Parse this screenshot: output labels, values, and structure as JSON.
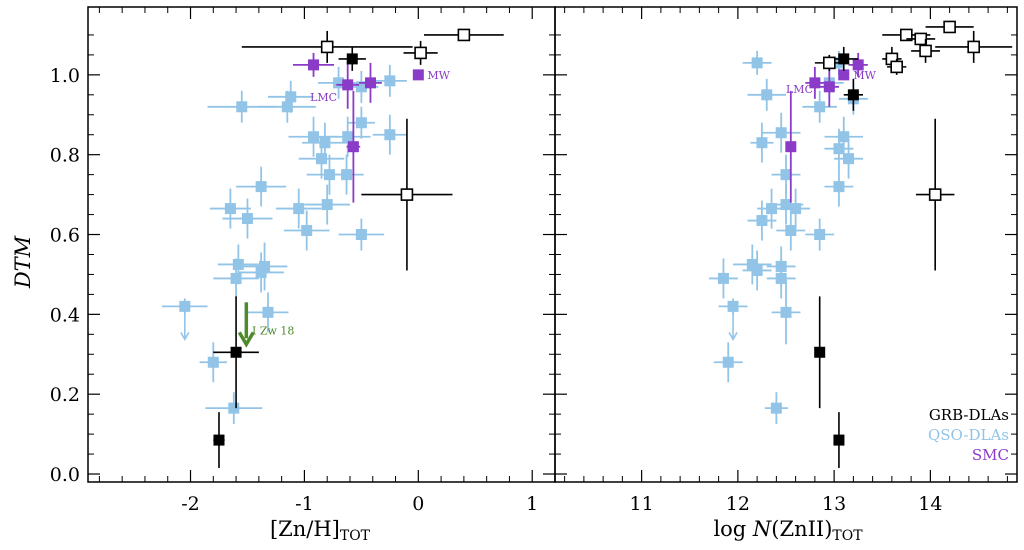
{
  "chart_data": [
    {
      "type": "scatter",
      "panel": "left",
      "title": "",
      "xlabel": "[Zn/H]",
      "xlabel_sub": "TOT",
      "ylabel": "DTM",
      "xlim": [
        -2.9,
        1.2
      ],
      "ylim": [
        -0.02,
        1.17
      ],
      "xticks": [
        -2,
        -1,
        0,
        1
      ],
      "xtick_labels": [
        "-2",
        "-1",
        "0",
        "1"
      ],
      "yticks": [
        0.0,
        0.2,
        0.4,
        0.6,
        0.8,
        1.0
      ],
      "ytick_labels": [
        "0.0",
        "0.2",
        "0.4",
        "0.6",
        "0.8",
        "1.0"
      ],
      "grid": false,
      "series": [
        {
          "name": "QSO-DLAs",
          "color": "#92c4e8",
          "marker": "filled-square",
          "points": [
            {
              "x": -2.05,
              "y": 0.42,
              "xerr": 0.2,
              "yerr": 0.02,
              "upper_limit": true
            },
            {
              "x": -1.8,
              "y": 0.28,
              "xerr": 0.12,
              "yerr": 0.05
            },
            {
              "x": -1.62,
              "y": 0.165,
              "xerr": 0.25,
              "yerr": 0.04
            },
            {
              "x": -1.65,
              "y": 0.665,
              "xerr": 0.18,
              "yerr": 0.05
            },
            {
              "x": -1.38,
              "y": 0.72,
              "xerr": 0.22,
              "yerr": 0.05
            },
            {
              "x": -1.5,
              "y": 0.64,
              "xerr": 0.22,
              "yerr": 0.05
            },
            {
              "x": -1.58,
              "y": 0.525,
              "xerr": 0.18,
              "yerr": 0.05
            },
            {
              "x": -1.6,
              "y": 0.49,
              "xerr": 0.2,
              "yerr": 0.05
            },
            {
              "x": -1.35,
              "y": 0.52,
              "xerr": 0.2,
              "yerr": 0.06
            },
            {
              "x": -1.38,
              "y": 0.505,
              "xerr": 0.2,
              "yerr": 0.05
            },
            {
              "x": -1.32,
              "y": 0.405,
              "xerr": 0.18,
              "yerr": 0.05
            },
            {
              "x": -1.55,
              "y": 0.92,
              "xerr": 0.3,
              "yerr": 0.04
            },
            {
              "x": -1.12,
              "y": 0.945,
              "xerr": 0.2,
              "yerr": 0.04
            },
            {
              "x": -1.15,
              "y": 0.92,
              "xerr": 0.25,
              "yerr": 0.04
            },
            {
              "x": -1.05,
              "y": 0.665,
              "xerr": 0.2,
              "yerr": 0.05
            },
            {
              "x": -0.98,
              "y": 0.61,
              "xerr": 0.2,
              "yerr": 0.05
            },
            {
              "x": -0.92,
              "y": 0.845,
              "xerr": 0.22,
              "yerr": 0.05
            },
            {
              "x": -0.82,
              "y": 0.83,
              "xerr": 0.2,
              "yerr": 0.05
            },
            {
              "x": -0.85,
              "y": 0.79,
              "xerr": 0.2,
              "yerr": 0.05
            },
            {
              "x": -0.78,
              "y": 0.75,
              "xerr": 0.2,
              "yerr": 0.05
            },
            {
              "x": -0.8,
              "y": 0.675,
              "xerr": 0.2,
              "yerr": 0.05
            },
            {
              "x": -0.7,
              "y": 0.98,
              "xerr": 0.18,
              "yerr": 0.04
            },
            {
              "x": -0.62,
              "y": 0.845,
              "xerr": 0.2,
              "yerr": 0.05
            },
            {
              "x": -0.63,
              "y": 0.75,
              "xerr": 0.15,
              "yerr": 0.05
            },
            {
              "x": -0.5,
              "y": 0.97,
              "xerr": 0.15,
              "yerr": 0.04
            },
            {
              "x": -0.25,
              "y": 0.85,
              "xerr": 0.15,
              "yerr": 0.05
            },
            {
              "x": -0.25,
              "y": 0.985,
              "xerr": 0.15,
              "yerr": 0.04
            },
            {
              "x": -0.5,
              "y": 0.88,
              "xerr": 0.12,
              "yerr": 0.04
            },
            {
              "x": -0.5,
              "y": 0.6,
              "xerr": 0.2,
              "yerr": 0.04
            }
          ]
        },
        {
          "name": "SMC",
          "color": "#8a3bc7",
          "marker": "filled-square",
          "points": [
            {
              "x": -0.92,
              "y": 1.025,
              "xerr": 0.18,
              "yerr": 0.03
            },
            {
              "x": -0.62,
              "y": 0.975,
              "xerr": 0.1,
              "yerr": 0.06
            },
            {
              "x": -0.42,
              "y": 0.98,
              "xerr": 0.1,
              "yerr": 0.05
            },
            {
              "x": -0.57,
              "y": 0.82,
              "xerr": 0.06,
              "yerr": 0.14
            }
          ]
        },
        {
          "name": "MW",
          "color": "#8a3bc7",
          "marker": "filled-square",
          "points": [
            {
              "x": 0.0,
              "y": 1.0,
              "xerr": 0,
              "yerr": 0
            }
          ]
        },
        {
          "name": "GRB-DLAs",
          "color": "#000000",
          "marker": "filled-square",
          "points": [
            {
              "x": -1.75,
              "y": 0.085,
              "xerr": 0.05,
              "yerr": 0.07
            },
            {
              "x": -1.6,
              "y": 0.305,
              "xerr": 0.2,
              "yerr": 0.14
            },
            {
              "x": -0.58,
              "y": 1.04,
              "xerr": 0.12,
              "yerr": 0.03
            }
          ]
        },
        {
          "name": "GRB-DLAs (open)",
          "color": "#000000",
          "marker": "open-square",
          "points": [
            {
              "x": -0.8,
              "y": 1.07,
              "xerr": 0.75,
              "yerr": 0.04
            },
            {
              "x": 0.02,
              "y": 1.055,
              "xerr": 0.15,
              "yerr": 0.03
            },
            {
              "x": 0.4,
              "y": 1.1,
              "xerr": 0.35,
              "yerr": 0.0
            },
            {
              "x": -0.1,
              "y": 0.7,
              "xerr": 0.4,
              "yerr": 0.19
            }
          ]
        },
        {
          "name": "I Zw 18",
          "color": "#4e8a2a",
          "marker": "arrow-down",
          "points": [
            {
              "x": -1.51,
              "y": 0.36,
              "upper_limit": true
            }
          ]
        }
      ],
      "annotations": [
        {
          "text": "I Zw 18",
          "x": -1.46,
          "y": 0.35,
          "color": "#4e8a2a"
        },
        {
          "text": "MW",
          "x": 0.08,
          "y": 0.99,
          "color": "#8a3bc7"
        },
        {
          "text": "LMC",
          "x": -0.95,
          "y": 0.935,
          "color": "#8a3bc7"
        }
      ]
    },
    {
      "type": "scatter",
      "panel": "right",
      "title": "",
      "xlabel_prefix": "log ",
      "xlabel_italic": "N",
      "xlabel_suffix": "(ZnII)",
      "xlabel_sub": "TOT",
      "xlim": [
        10.1,
        14.9
      ],
      "ylim": [
        -0.02,
        1.17
      ],
      "xticks": [
        11,
        12,
        13,
        14
      ],
      "xtick_labels": [
        "11",
        "12",
        "13",
        "14"
      ],
      "yticks": [
        0.0,
        0.2,
        0.4,
        0.6,
        0.8,
        1.0
      ],
      "grid": false,
      "series": [
        {
          "name": "QSO-DLAs",
          "color": "#92c4e8",
          "marker": "filled-square",
          "points": [
            {
              "x": 12.2,
              "y": 1.03,
              "xerr": 0.15,
              "yerr": 0.03
            },
            {
              "x": 12.3,
              "y": 0.95,
              "xerr": 0.2,
              "yerr": 0.04
            },
            {
              "x": 12.25,
              "y": 0.83,
              "xerr": 0.12,
              "yerr": 0.05
            },
            {
              "x": 12.45,
              "y": 0.855,
              "xerr": 0.2,
              "yerr": 0.05
            },
            {
              "x": 12.35,
              "y": 0.665,
              "xerr": 0.15,
              "yerr": 0.05
            },
            {
              "x": 12.25,
              "y": 0.635,
              "xerr": 0.15,
              "yerr": 0.05
            },
            {
              "x": 12.5,
              "y": 0.75,
              "xerr": 0.15,
              "yerr": 0.05
            },
            {
              "x": 12.5,
              "y": 0.675,
              "xerr": 0.18,
              "yerr": 0.05
            },
            {
              "x": 12.6,
              "y": 0.665,
              "xerr": 0.15,
              "yerr": 0.05
            },
            {
              "x": 12.55,
              "y": 0.61,
              "xerr": 0.15,
              "yerr": 0.05
            },
            {
              "x": 12.15,
              "y": 0.525,
              "xerr": 0.2,
              "yerr": 0.05
            },
            {
              "x": 12.2,
              "y": 0.51,
              "xerr": 0.15,
              "yerr": 0.05
            },
            {
              "x": 12.45,
              "y": 0.52,
              "xerr": 0.15,
              "yerr": 0.05
            },
            {
              "x": 12.45,
              "y": 0.49,
              "xerr": 0.15,
              "yerr": 0.05
            },
            {
              "x": 11.85,
              "y": 0.49,
              "xerr": 0.15,
              "yerr": 0.05
            },
            {
              "x": 11.95,
              "y": 0.42,
              "xerr": 0.15,
              "yerr": 0.02,
              "upper_limit": true
            },
            {
              "x": 12.5,
              "y": 0.405,
              "xerr": 0.15,
              "yerr": 0.08
            },
            {
              "x": 11.9,
              "y": 0.28,
              "xerr": 0.15,
              "yerr": 0.05
            },
            {
              "x": 12.4,
              "y": 0.165,
              "xerr": 0.12,
              "yerr": 0.04
            },
            {
              "x": 12.85,
              "y": 0.92,
              "xerr": 0.18,
              "yerr": 0.04
            },
            {
              "x": 13.05,
              "y": 0.815,
              "xerr": 0.15,
              "yerr": 0.05
            },
            {
              "x": 13.1,
              "y": 0.845,
              "xerr": 0.2,
              "yerr": 0.05
            },
            {
              "x": 13.15,
              "y": 0.79,
              "xerr": 0.15,
              "yerr": 0.05
            },
            {
              "x": 13.05,
              "y": 0.72,
              "xerr": 0.15,
              "yerr": 0.05
            },
            {
              "x": 13.2,
              "y": 0.94,
              "xerr": 0.15,
              "yerr": 0.04
            },
            {
              "x": 12.85,
              "y": 0.6,
              "xerr": 0.15,
              "yerr": 0.04
            },
            {
              "x": 13.05,
              "y": 1.03,
              "xerr": 0.1,
              "yerr": 0.03
            },
            {
              "x": 12.95,
              "y": 0.98,
              "xerr": 0.15,
              "yerr": 0.04
            }
          ]
        },
        {
          "name": "SMC",
          "color": "#8a3bc7",
          "marker": "filled-square",
          "points": [
            {
              "x": 12.8,
              "y": 0.98,
              "xerr": 0.1,
              "yerr": 0.04
            },
            {
              "x": 12.95,
              "y": 0.97,
              "xerr": 0.1,
              "yerr": 0.05
            },
            {
              "x": 13.25,
              "y": 1.025,
              "xerr": 0.1,
              "yerr": 0.03
            },
            {
              "x": 12.55,
              "y": 0.82,
              "xerr": 0.05,
              "yerr": 0.14
            }
          ]
        },
        {
          "name": "MW",
          "color": "#8a3bc7",
          "marker": "filled-square",
          "points": [
            {
              "x": 13.1,
              "y": 1.0,
              "xerr": 0,
              "yerr": 0
            }
          ]
        },
        {
          "name": "GRB-DLAs",
          "color": "#000000",
          "marker": "filled-square",
          "points": [
            {
              "x": 13.1,
              "y": 1.04,
              "xerr": 0.15,
              "yerr": 0.03
            },
            {
              "x": 13.2,
              "y": 0.95,
              "xerr": 0.1,
              "yerr": 0.04
            },
            {
              "x": 12.85,
              "y": 0.305,
              "xerr": 0.05,
              "yerr": 0.14
            },
            {
              "x": 13.05,
              "y": 0.085,
              "xerr": 0.05,
              "yerr": 0.07
            }
          ]
        },
        {
          "name": "GRB-DLAs (open)",
          "color": "#000000",
          "marker": "open-square",
          "points": [
            {
              "x": 12.95,
              "y": 1.03,
              "xerr": 0.15,
              "yerr": 0.02
            },
            {
              "x": 13.6,
              "y": 1.04,
              "xerr": 0.1,
              "yerr": 0.03
            },
            {
              "x": 13.65,
              "y": 1.02,
              "xerr": 0.1,
              "yerr": 0.02
            },
            {
              "x": 13.75,
              "y": 1.1,
              "xerr": 0.25,
              "yerr": 0.0
            },
            {
              "x": 13.9,
              "y": 1.09,
              "xerr": 0.15,
              "yerr": 0.0
            },
            {
              "x": 13.95,
              "y": 1.06,
              "xerr": 0.15,
              "yerr": 0.03
            },
            {
              "x": 14.2,
              "y": 1.12,
              "xerr": 0.25,
              "yerr": 0.0
            },
            {
              "x": 14.45,
              "y": 1.07,
              "xerr": 0.4,
              "yerr": 0.04
            },
            {
              "x": 14.05,
              "y": 0.7,
              "xerr": 0.2,
              "yerr": 0.19
            }
          ]
        }
      ],
      "annotations": [
        {
          "text": "LMC",
          "x": 12.5,
          "y": 0.955,
          "color": "#8a3bc7"
        },
        {
          "text": "MW",
          "x": 13.2,
          "y": 0.99,
          "color": "#8a3bc7"
        }
      ],
      "legend": {
        "placement": "bottom-right",
        "entries": [
          {
            "label": "GRB-DLAs",
            "color": "#000000"
          },
          {
            "label": "QSO-DLAs",
            "color": "#92c4e8"
          },
          {
            "label": "SMC",
            "color": "#8a3bc7"
          }
        ]
      }
    }
  ]
}
